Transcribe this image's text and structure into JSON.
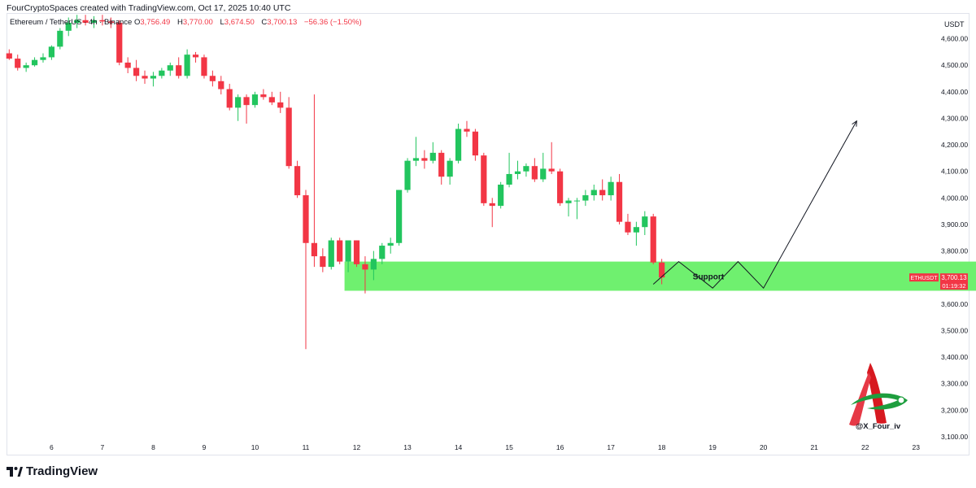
{
  "credit": "FourCryptoSpaces created with TradingView.com, Oct 17, 2025 10:40 UTC",
  "legend": {
    "symbol": "Ethereum / TetherUS · 4h · Binance",
    "o_label": "O",
    "o_value": "3,756.49",
    "h_label": "H",
    "h_value": "3,770.00",
    "l_label": "L",
    "l_value": "3,674.50",
    "c_label": "C",
    "c_value": "3,700.13",
    "change": "−56.36 (−1.50%)"
  },
  "axis_unit": "USDT",
  "brand": "TradingView",
  "watermark_handle": "@X_Four_iv",
  "colors": {
    "up": "#22c55e",
    "down": "#f23645",
    "support_zone": "#6ff06f",
    "arrow": "#131722"
  },
  "chart_data": {
    "type": "candlestick",
    "symbol": "ETHUSDT",
    "interval": "4h",
    "exchange": "Binance",
    "y_ticks": [
      3100,
      3200,
      3300,
      3400,
      3500,
      3600,
      3700,
      3800,
      3900,
      4000,
      4100,
      4200,
      4300,
      4400,
      4500,
      4600
    ],
    "y_tick_labels": [
      "3,100.00",
      "3,200.00",
      "3,300.00",
      "3,400.00",
      "3,500.00",
      "3,600.00",
      "3,700.00",
      "3,800.00",
      "3,900.00",
      "4,000.00",
      "4,100.00",
      "4,200.00",
      "4,300.00",
      "4,400.00",
      "4,500.00",
      "4,600.00"
    ],
    "ylim": [
      3090,
      4650
    ],
    "x_ticks": [
      "6",
      "7",
      "8",
      "9",
      "10",
      "11",
      "12",
      "13",
      "14",
      "15",
      "16",
      "17",
      "18",
      "19",
      "20",
      "21",
      "22",
      "23"
    ],
    "x_tick_bar_index": [
      5,
      11,
      17,
      23,
      29,
      35,
      41,
      47,
      53,
      59,
      65,
      71,
      77,
      83,
      89,
      95,
      101,
      107
    ],
    "candles": [
      [
        4545,
        4560,
        4520,
        4525
      ],
      [
        4525,
        4540,
        4480,
        4490
      ],
      [
        4490,
        4510,
        4475,
        4500
      ],
      [
        4500,
        4530,
        4495,
        4520
      ],
      [
        4520,
        4545,
        4510,
        4530
      ],
      [
        4530,
        4575,
        4520,
        4570
      ],
      [
        4570,
        4640,
        4560,
        4630
      ],
      [
        4630,
        4680,
        4610,
        4660
      ],
      [
        4660,
        4690,
        4640,
        4670
      ],
      [
        4670,
        4690,
        4650,
        4660
      ],
      [
        4660,
        4685,
        4640,
        4670
      ],
      [
        4670,
        4690,
        4650,
        4665
      ],
      [
        4665,
        4680,
        4640,
        4660
      ],
      [
        4660,
        4670,
        4500,
        4510
      ],
      [
        4510,
        4530,
        4470,
        4490
      ],
      [
        4490,
        4520,
        4440,
        4460
      ],
      [
        4460,
        4480,
        4430,
        4450
      ],
      [
        4450,
        4475,
        4420,
        4460
      ],
      [
        4460,
        4490,
        4450,
        4480
      ],
      [
        4480,
        4510,
        4460,
        4500
      ],
      [
        4500,
        4530,
        4450,
        4460
      ],
      [
        4460,
        4560,
        4450,
        4540
      ],
      [
        4540,
        4550,
        4510,
        4530
      ],
      [
        4530,
        4540,
        4450,
        4460
      ],
      [
        4460,
        4480,
        4420,
        4440
      ],
      [
        4440,
        4460,
        4390,
        4410
      ],
      [
        4410,
        4430,
        4330,
        4340
      ],
      [
        4340,
        4390,
        4290,
        4380
      ],
      [
        4380,
        4390,
        4280,
        4350
      ],
      [
        4350,
        4400,
        4340,
        4390
      ],
      [
        4390,
        4410,
        4370,
        4380
      ],
      [
        4380,
        4400,
        4350,
        4360
      ],
      [
        4360,
        4400,
        4320,
        4340
      ],
      [
        4340,
        4380,
        4110,
        4120
      ],
      [
        4120,
        4140,
        4000,
        4010
      ],
      [
        4010,
        4030,
        3430,
        3830
      ],
      [
        3830,
        4390,
        3740,
        3780
      ],
      [
        3780,
        3810,
        3720,
        3740
      ],
      [
        3740,
        3850,
        3730,
        3840
      ],
      [
        3840,
        3850,
        3750,
        3760
      ],
      [
        3760,
        3840,
        3720,
        3840
      ],
      [
        3840,
        3840,
        3740,
        3750
      ],
      [
        3750,
        3780,
        3640,
        3730
      ],
      [
        3730,
        3800,
        3690,
        3770
      ],
      [
        3770,
        3830,
        3750,
        3820
      ],
      [
        3820,
        3850,
        3790,
        3830
      ],
      [
        3830,
        4030,
        3820,
        4030
      ],
      [
        4030,
        4150,
        4020,
        4140
      ],
      [
        4140,
        4230,
        4120,
        4150
      ],
      [
        4150,
        4180,
        4110,
        4140
      ],
      [
        4140,
        4210,
        4130,
        4170
      ],
      [
        4170,
        4180,
        4050,
        4080
      ],
      [
        4080,
        4150,
        4050,
        4140
      ],
      [
        4140,
        4280,
        4130,
        4260
      ],
      [
        4260,
        4290,
        4230,
        4250
      ],
      [
        4250,
        4260,
        4140,
        4160
      ],
      [
        4160,
        4170,
        3970,
        3980
      ],
      [
        3980,
        4000,
        3890,
        3970
      ],
      [
        3970,
        4060,
        3960,
        4050
      ],
      [
        4050,
        4170,
        4040,
        4090
      ],
      [
        4090,
        4140,
        4070,
        4100
      ],
      [
        4100,
        4130,
        4080,
        4120
      ],
      [
        4120,
        4150,
        4060,
        4070
      ],
      [
        4070,
        4170,
        4060,
        4110
      ],
      [
        4110,
        4210,
        4090,
        4100
      ],
      [
        4100,
        4110,
        3970,
        3980
      ],
      [
        3980,
        4000,
        3930,
        3990
      ],
      [
        3990,
        4000,
        3920,
        3990
      ],
      [
        3990,
        4030,
        3970,
        4010
      ],
      [
        4010,
        4050,
        3990,
        4030
      ],
      [
        4030,
        4070,
        3990,
        4010
      ],
      [
        4010,
        4080,
        3990,
        4060
      ],
      [
        4060,
        4090,
        3900,
        3910
      ],
      [
        3910,
        3940,
        3860,
        3870
      ],
      [
        3870,
        3910,
        3820,
        3890
      ],
      [
        3890,
        3950,
        3860,
        3930
      ],
      [
        3930,
        3940,
        3750,
        3756.49
      ],
      [
        3756.49,
        3770,
        3674.5,
        3700.13
      ]
    ],
    "support_zone": {
      "label": "Support",
      "low": 3650,
      "high": 3760,
      "bar_start": 40,
      "bar_end": 125
    },
    "projection_path": [
      [
        76,
        3674.5
      ],
      [
        79,
        3760
      ],
      [
        83,
        3660
      ],
      [
        86,
        3760
      ],
      [
        89,
        3660
      ],
      [
        100,
        4290
      ]
    ],
    "price_label": {
      "symbol": "ETHUSDT",
      "price": "3,700.13",
      "countdown": "01:19:32",
      "value": 3700.13
    }
  }
}
